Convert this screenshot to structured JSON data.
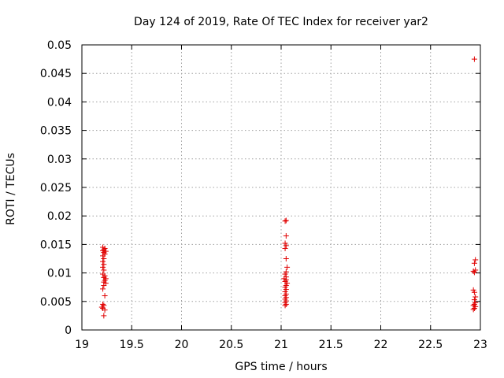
{
  "chart_data": {
    "type": "scatter",
    "title": "Day 124 of 2019, Rate Of TEC Index for receiver yar2",
    "xlabel": "GPS time / hours",
    "ylabel": "ROTI / TECUs",
    "xlim": [
      19,
      23
    ],
    "ylim": [
      0,
      0.05
    ],
    "xticks": [
      19,
      19.5,
      20,
      20.5,
      21,
      21.5,
      22,
      22.5,
      23
    ],
    "xtick_labels": [
      "19",
      "19.5",
      "20",
      "20.5",
      "21",
      "21.5",
      "22",
      "22.5",
      "23"
    ],
    "yticks": [
      0,
      0.005,
      0.01,
      0.015,
      0.02,
      0.025,
      0.03,
      0.035,
      0.04,
      0.045,
      0.05
    ],
    "ytick_labels": [
      "0",
      "0.005",
      "0.01",
      "0.015",
      "0.02",
      "0.025",
      "0.03",
      "0.035",
      "0.04",
      "0.045",
      "0.05"
    ],
    "grid": true,
    "marker": "+",
    "color": "#e00000",
    "series": [
      {
        "name": "yar2",
        "points": [
          [
            19.21,
            0.0145
          ],
          [
            19.23,
            0.0143
          ],
          [
            19.22,
            0.0141
          ],
          [
            19.21,
            0.0139
          ],
          [
            19.24,
            0.0138
          ],
          [
            19.22,
            0.0136
          ],
          [
            19.23,
            0.0133
          ],
          [
            19.21,
            0.013
          ],
          [
            19.22,
            0.0125
          ],
          [
            19.21,
            0.012
          ],
          [
            19.22,
            0.0115
          ],
          [
            19.21,
            0.011
          ],
          [
            19.22,
            0.0105
          ],
          [
            19.21,
            0.0098
          ],
          [
            19.23,
            0.0095
          ],
          [
            19.22,
            0.0092
          ],
          [
            19.24,
            0.009
          ],
          [
            19.23,
            0.0087
          ],
          [
            19.22,
            0.0084
          ],
          [
            19.24,
            0.0082
          ],
          [
            19.22,
            0.0078
          ],
          [
            19.21,
            0.0072
          ],
          [
            19.23,
            0.006
          ],
          [
            19.21,
            0.0045
          ],
          [
            19.22,
            0.0043
          ],
          [
            19.2,
            0.004
          ],
          [
            19.21,
            0.0038
          ],
          [
            19.23,
            0.0035
          ],
          [
            19.22,
            0.0025
          ],
          [
            21.05,
            0.0192
          ],
          [
            21.04,
            0.0191
          ],
          [
            21.05,
            0.0165
          ],
          [
            21.04,
            0.0152
          ],
          [
            21.05,
            0.0148
          ],
          [
            21.04,
            0.0143
          ],
          [
            21.05,
            0.0125
          ],
          [
            21.06,
            0.011
          ],
          [
            21.05,
            0.0102
          ],
          [
            21.04,
            0.0098
          ],
          [
            21.05,
            0.0093
          ],
          [
            21.03,
            0.009
          ],
          [
            21.05,
            0.0088
          ],
          [
            21.04,
            0.0085
          ],
          [
            21.06,
            0.0082
          ],
          [
            21.05,
            0.0078
          ],
          [
            21.04,
            0.0075
          ],
          [
            21.05,
            0.0071
          ],
          [
            21.04,
            0.0067
          ],
          [
            21.05,
            0.0063
          ],
          [
            21.04,
            0.006
          ],
          [
            21.05,
            0.0057
          ],
          [
            21.04,
            0.0054
          ],
          [
            21.05,
            0.0051
          ],
          [
            21.04,
            0.0048
          ],
          [
            21.05,
            0.0045
          ],
          [
            21.04,
            0.0043
          ],
          [
            22.94,
            0.0475
          ],
          [
            22.95,
            0.0123
          ],
          [
            22.94,
            0.0117
          ],
          [
            22.95,
            0.0105
          ],
          [
            22.93,
            0.0103
          ],
          [
            22.94,
            0.0101
          ],
          [
            22.93,
            0.007
          ],
          [
            22.94,
            0.0066
          ],
          [
            22.95,
            0.0058
          ],
          [
            22.94,
            0.0053
          ],
          [
            22.95,
            0.0048
          ],
          [
            22.94,
            0.0045
          ],
          [
            22.93,
            0.0043
          ],
          [
            22.95,
            0.0041
          ],
          [
            22.94,
            0.0038
          ],
          [
            22.93,
            0.0036
          ]
        ]
      }
    ]
  }
}
